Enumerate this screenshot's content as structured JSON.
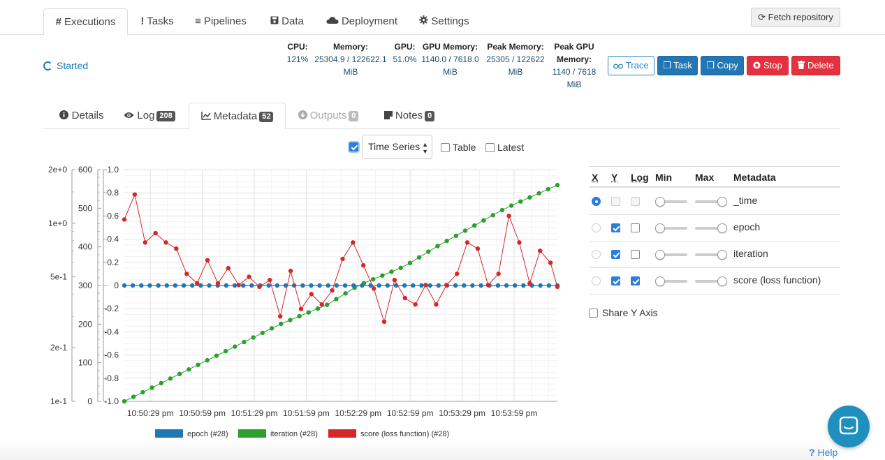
{
  "top_tabs": [
    {
      "icon": "#",
      "label": "Executions",
      "active": true
    },
    {
      "icon": "!",
      "label": "Tasks"
    },
    {
      "icon": "≡",
      "label": "Pipelines"
    },
    {
      "icon": "floppy-icon",
      "label": "Data"
    },
    {
      "icon": "cloud-icon",
      "label": "Deployment"
    },
    {
      "icon": "gear-icon",
      "label": "Settings"
    }
  ],
  "fetch_label": "Fetch repository",
  "status": "Started",
  "stats": {
    "cpu": {
      "label": "CPU:",
      "value": "121%"
    },
    "memory": {
      "label": "Memory:",
      "value1": "25304.9 / 122622.1",
      "value2": "MiB"
    },
    "gpu": {
      "label": "GPU:",
      "value": "51.0%"
    },
    "gpu_memory": {
      "label": "GPU Memory:",
      "value1": "1140.0 / 7618.0",
      "value2": "MiB"
    },
    "peak_memory": {
      "label": "Peak Memory:",
      "value1": "25305 / 122622",
      "value2": "MiB"
    },
    "peak_gpu": {
      "label1": "Peak GPU",
      "label2": "Memory:",
      "value1": "1140 / 7618",
      "value2": "MiB"
    }
  },
  "actions": {
    "trace": "Trace",
    "task": "Task",
    "copy": "Copy",
    "stop": "Stop",
    "delete": "Delete"
  },
  "sub_tabs": {
    "details": "Details",
    "log": "Log",
    "log_count": "208",
    "metadata": "Metadata",
    "metadata_count": "52",
    "outputs": "Outputs",
    "outputs_count": "0",
    "notes": "Notes",
    "notes_count": "0"
  },
  "controls": {
    "mode": "Time Series",
    "table_label": "Table",
    "latest_label": "Latest"
  },
  "meta_table": {
    "headers": {
      "x": "X",
      "y": "Y",
      "log": "Log",
      "min": "Min",
      "max": "Max",
      "metadata": "Metadata"
    },
    "rows": [
      {
        "name": "_time",
        "x": true,
        "y": false,
        "log": false,
        "disabled": true
      },
      {
        "name": "epoch",
        "x": false,
        "y": true,
        "log": false
      },
      {
        "name": "iteration",
        "x": false,
        "y": true,
        "log": false
      },
      {
        "name": "score (loss function)",
        "x": false,
        "y": true,
        "log": true
      }
    ]
  },
  "share_label": "Share Y Axis",
  "help_label": "Help",
  "colors": {
    "epoch": "#1f77b4",
    "iteration": "#2ca02c",
    "score": "#d62728",
    "accent": "#2a7de1"
  },
  "chart_data": {
    "type": "line",
    "x_ticks": [
      "10:50:29 pm",
      "10:50:59 pm",
      "10:51:29 pm",
      "10:51:59 pm",
      "10:52:29 pm",
      "10:52:59 pm",
      "10:53:29 pm",
      "10:53:59 pm"
    ],
    "x_range_seconds": [
      0,
      250
    ],
    "y_axes": [
      {
        "series": "score (loss function)",
        "scale": "log",
        "ticks": [
          "2e+0",
          "1e+0",
          "5e-1",
          "2e-1",
          "1e-1"
        ],
        "range": [
          0.1,
          2
        ]
      },
      {
        "series": "iteration",
        "ticks": [
          "600",
          "500",
          "400",
          "300",
          "200",
          "100",
          "0"
        ],
        "range": [
          0,
          600
        ]
      },
      {
        "series": "epoch",
        "ticks": [
          "1.0",
          "0.8",
          "0.6",
          "0.4",
          "0.2",
          "0",
          "-0.2",
          "-0.4",
          "-0.6",
          "-0.8",
          "-1.0"
        ],
        "range": [
          -1,
          1
        ]
      }
    ],
    "series": [
      {
        "name": "epoch (#28)",
        "x": [
          0,
          250
        ],
        "values": [
          0,
          0
        ],
        "point_count": 52
      },
      {
        "name": "iteration (#28)",
        "x": [
          0,
          45,
          90,
          117,
          135,
          162,
          180,
          200,
          220,
          250
        ],
        "values": [
          0,
          100,
          200,
          250,
          300,
          350,
          400,
          450,
          500,
          560
        ]
      },
      {
        "name": "score (loss function) (#28)",
        "x": [
          0,
          6,
          12,
          18,
          24,
          30,
          36,
          42,
          48,
          54,
          60,
          66,
          72,
          78,
          84,
          90,
          96,
          102,
          108,
          114,
          120,
          126,
          132,
          138,
          144,
          150,
          156,
          162,
          168,
          174,
          180,
          186,
          192,
          198,
          204,
          210,
          216,
          222,
          228,
          234,
          240,
          246,
          250
        ],
        "values": [
          1.05,
          1.45,
          0.78,
          0.88,
          0.78,
          0.72,
          0.52,
          0.46,
          0.62,
          0.46,
          0.56,
          0.45,
          0.5,
          0.44,
          0.48,
          0.3,
          0.54,
          0.33,
          0.4,
          0.35,
          0.42,
          0.63,
          0.78,
          0.58,
          0.43,
          0.28,
          0.48,
          0.38,
          0.35,
          0.45,
          0.35,
          0.45,
          0.52,
          0.78,
          0.72,
          0.45,
          0.52,
          1.1,
          0.78,
          0.46,
          0.7,
          0.6,
          0.44
        ]
      }
    ],
    "legend_placement": "bottom",
    "grid": true
  }
}
